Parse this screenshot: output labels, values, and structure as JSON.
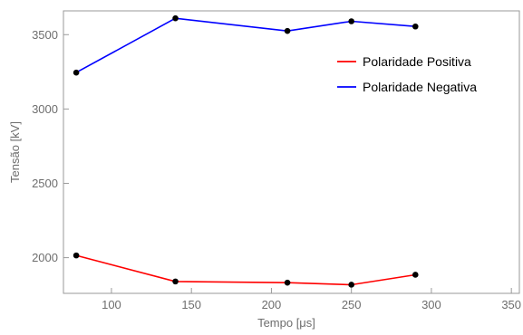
{
  "chart_data": {
    "type": "line",
    "title": "",
    "xlabel": "Tempo [μs]",
    "ylabel": "Tensão [kV]",
    "xlim": [
      70,
      355
    ],
    "ylim": [
      1760,
      3660
    ],
    "x_ticks": [
      100,
      150,
      200,
      250,
      300,
      350
    ],
    "y_ticks": [
      2000,
      2500,
      3000,
      3500
    ],
    "legend_position": "top-right",
    "marker_color": "#000000",
    "series": [
      {
        "name": "Polaridade Positiva",
        "color": "#ff0000",
        "x": [
          78,
          140,
          210,
          250,
          290
        ],
        "y": [
          2015,
          1840,
          1832,
          1818,
          1885
        ]
      },
      {
        "name": "Polaridade Negativa",
        "color": "#0000ff",
        "x": [
          78,
          140,
          210,
          250,
          290
        ],
        "y": [
          3245,
          3610,
          3525,
          3590,
          3555
        ]
      }
    ]
  }
}
